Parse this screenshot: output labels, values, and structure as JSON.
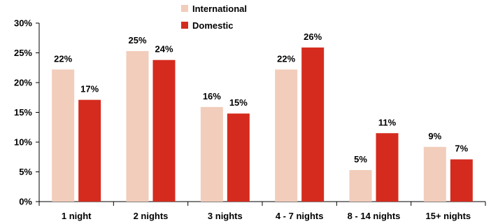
{
  "chart_data": {
    "type": "bar",
    "title": "",
    "xlabel": "",
    "ylabel": "",
    "categories": [
      "1 night",
      "2 nights",
      "3 nights",
      "4 - 7 nights",
      "8 - 14 nights",
      "15+ nights"
    ],
    "series": [
      {
        "name": "International",
        "values": [
          22,
          25,
          16,
          22,
          5,
          9
        ],
        "exact_values": [
          22.2,
          25.3,
          15.9,
          22.2,
          5.3,
          9.2
        ],
        "labels": [
          "22%",
          "25%",
          "16%",
          "22%",
          "5%",
          "9%"
        ],
        "color": "#f2cdbb"
      },
      {
        "name": "Domestic",
        "values": [
          17,
          24,
          15,
          26,
          11,
          7
        ],
        "exact_values": [
          17.1,
          23.8,
          14.8,
          25.9,
          11.5,
          7.1
        ],
        "labels": [
          "17%",
          "24%",
          "15%",
          "26%",
          "11%",
          "7%"
        ],
        "color": "#d52b1e"
      }
    ],
    "ylim": [
      0,
      30
    ],
    "yticks": [
      0,
      5,
      10,
      15,
      20,
      25,
      30
    ],
    "ytick_labels": [
      "0%",
      "5%",
      "10%",
      "15%",
      "20%",
      "25%",
      "30%"
    ],
    "grid": false,
    "legend_position": "top-center"
  }
}
